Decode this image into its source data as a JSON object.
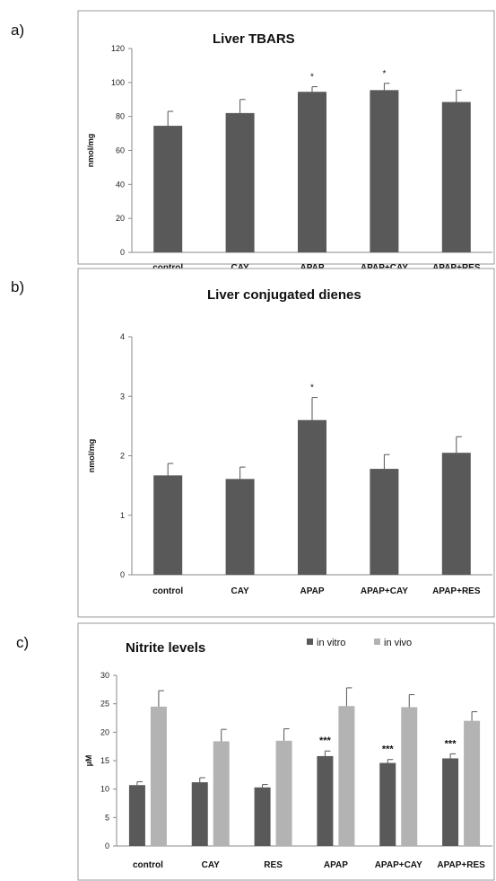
{
  "panel_labels": [
    "a)",
    "b)",
    "c)"
  ],
  "chart_data": [
    {
      "type": "bar",
      "title": "Liver TBARS",
      "xlabel": "",
      "ylabel": "nmol/mg",
      "ylim": [
        0,
        120
      ],
      "yticks": [
        0,
        20,
        40,
        60,
        80,
        100,
        120
      ],
      "categories": [
        "control",
        "CAY",
        "APAP",
        "APAP+CAY",
        "APAP+RES"
      ],
      "values": [
        74.5,
        82,
        94.5,
        95.5,
        88.5
      ],
      "errors": [
        8.5,
        8,
        3,
        4,
        7
      ],
      "significance": [
        "",
        "",
        "*",
        "*",
        ""
      ],
      "color": "#595959",
      "grid": false
    },
    {
      "type": "bar",
      "title": "Liver conjugated dienes",
      "xlabel": "",
      "ylabel": "nmol/mg",
      "ylim": [
        0,
        4
      ],
      "yticks": [
        0,
        1,
        2,
        3,
        4
      ],
      "categories": [
        "control",
        "CAY",
        "APAP",
        "APAP+CAY",
        "APAP+RES"
      ],
      "values": [
        1.67,
        1.61,
        2.6,
        1.78,
        2.05
      ],
      "errors": [
        0.2,
        0.2,
        0.38,
        0.24,
        0.27
      ],
      "significance": [
        "",
        "",
        "*",
        "",
        ""
      ],
      "color": "#595959",
      "grid": false
    },
    {
      "type": "bar",
      "title": "Nitrite levels",
      "xlabel": "",
      "ylabel": "µM",
      "ylim": [
        0,
        30
      ],
      "yticks": [
        0,
        5,
        10,
        15,
        20,
        25,
        30
      ],
      "categories": [
        "control",
        "CAY",
        "RES",
        "APAP",
        "APAP+CAY",
        "APAP+RES"
      ],
      "legend_position": "top-right",
      "series": [
        {
          "name": "in vitro",
          "color": "#595959",
          "values": [
            10.7,
            11.2,
            10.3,
            15.8,
            14.6,
            15.4
          ],
          "errors": [
            0.6,
            0.8,
            0.5,
            0.9,
            0.6,
            0.8
          ],
          "significance": [
            "",
            "",
            "",
            "***",
            "***",
            "***"
          ]
        },
        {
          "name": "in vivo",
          "color": "#b3b3b3",
          "values": [
            24.5,
            18.4,
            18.5,
            24.6,
            24.4,
            22.0
          ],
          "errors": [
            2.8,
            2.1,
            2.1,
            3.2,
            2.2,
            1.6
          ],
          "significance": [
            "",
            "",
            "",
            "",
            "",
            ""
          ]
        }
      ],
      "grid": false
    }
  ]
}
